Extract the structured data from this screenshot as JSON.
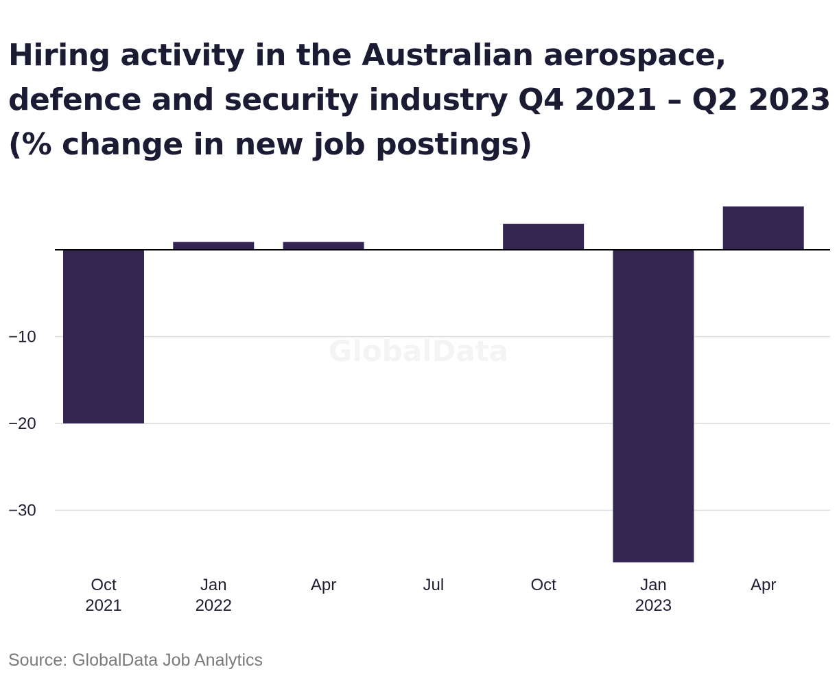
{
  "title": "Hiring activity in the Australian aerospace, defence and security industry Q4 2021 – Q2 2023 (% change in new job postings)",
  "source": "Source: GlobalData Job Analytics",
  "watermark": "GlobalData",
  "colors": {
    "bar": "#352552",
    "grid": "#d9d9d9",
    "zero_line": "#000000",
    "text": "#1f1d33"
  },
  "chart_data": {
    "type": "bar",
    "categories": [
      [
        "Oct",
        "2021"
      ],
      [
        "Jan",
        "2022"
      ],
      [
        "Apr",
        ""
      ],
      [
        "Jul",
        ""
      ],
      [
        "Oct",
        ""
      ],
      [
        "Jan",
        "2023"
      ],
      [
        "Apr",
        ""
      ]
    ],
    "values": [
      -20,
      0.9,
      0.9,
      0,
      3,
      -36,
      5
    ],
    "yticks": [
      -10,
      -20,
      -30
    ],
    "ytick_labels": [
      "−10",
      "−20",
      "−30"
    ],
    "ylim": [
      -36,
      5
    ],
    "grid": true,
    "legend": "none",
    "xlabel": "",
    "ylabel": ""
  }
}
